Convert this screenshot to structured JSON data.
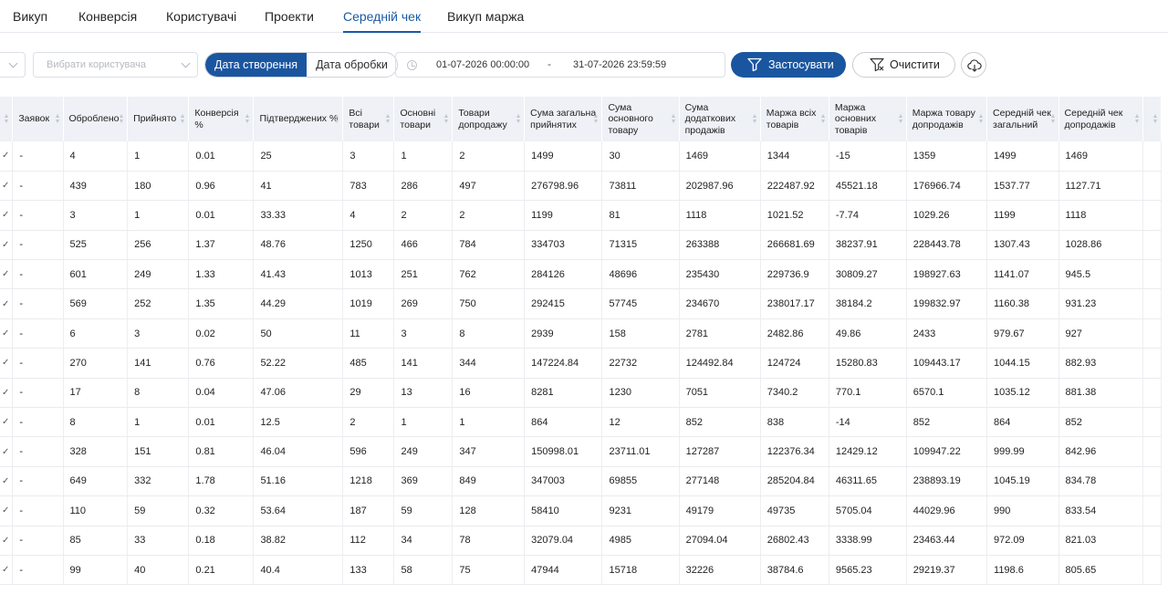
{
  "tabs": [
    "Викуп",
    "Конверсія",
    "Користувачі",
    "Проекти",
    "Середній чек",
    "Викуп маржа"
  ],
  "active_tab": "Середній чек",
  "toolbar": {
    "user_placeholder": "Вибрати користувача",
    "date_created": "Дата створення",
    "date_processed": "Дата обробки",
    "date_from": "01-07-2026 00:00:00",
    "date_sep": "-",
    "date_to": "31-07-2026 23:59:59",
    "apply_label": "Застосувати",
    "clear_label": "Очистити"
  },
  "colors": {
    "primary": "#1a56a0",
    "header_bg": "#eef1f6"
  },
  "table": {
    "headers": [
      "",
      "Заявок",
      "Оброблено",
      "Прийнято",
      "Конверсія %",
      "Підтверджених %",
      "Всі товари",
      "Основні товари",
      "Товари допродажу",
      "Сума загальна прийнятих",
      "Сума основного товару",
      "Сума додаткових продажів",
      "Маржа всіх товарів",
      "Маржа основних товарів",
      "Маржа товару допродажів",
      "Середній чек загальний",
      "Середній чек допродажів",
      ""
    ],
    "rows": [
      [
        "✓",
        "-",
        "4",
        "1",
        "0.01",
        "25",
        "3",
        "1",
        "2",
        "1499",
        "30",
        "1469",
        "1344",
        "-15",
        "1359",
        "1499",
        "1469",
        ""
      ],
      [
        "✓",
        "-",
        "439",
        "180",
        "0.96",
        "41",
        "783",
        "286",
        "497",
        "276798.96",
        "73811",
        "202987.96",
        "222487.92",
        "45521.18",
        "176966.74",
        "1537.77",
        "1127.71",
        ""
      ],
      [
        "✓",
        "-",
        "3",
        "1",
        "0.01",
        "33.33",
        "4",
        "2",
        "2",
        "1199",
        "81",
        "1118",
        "1021.52",
        "-7.74",
        "1029.26",
        "1199",
        "1118",
        ""
      ],
      [
        "✓",
        "-",
        "525",
        "256",
        "1.37",
        "48.76",
        "1250",
        "466",
        "784",
        "334703",
        "71315",
        "263388",
        "266681.69",
        "38237.91",
        "228443.78",
        "1307.43",
        "1028.86",
        ""
      ],
      [
        "✓",
        "-",
        "601",
        "249",
        "1.33",
        "41.43",
        "1013",
        "251",
        "762",
        "284126",
        "48696",
        "235430",
        "229736.9",
        "30809.27",
        "198927.63",
        "1141.07",
        "945.5",
        ""
      ],
      [
        "✓",
        "-",
        "569",
        "252",
        "1.35",
        "44.29",
        "1019",
        "269",
        "750",
        "292415",
        "57745",
        "234670",
        "238017.17",
        "38184.2",
        "199832.97",
        "1160.38",
        "931.23",
        ""
      ],
      [
        "✓",
        "-",
        "6",
        "3",
        "0.02",
        "50",
        "11",
        "3",
        "8",
        "2939",
        "158",
        "2781",
        "2482.86",
        "49.86",
        "2433",
        "979.67",
        "927",
        ""
      ],
      [
        "✓",
        "-",
        "270",
        "141",
        "0.76",
        "52.22",
        "485",
        "141",
        "344",
        "147224.84",
        "22732",
        "124492.84",
        "124724",
        "15280.83",
        "109443.17",
        "1044.15",
        "882.93",
        ""
      ],
      [
        "✓",
        "-",
        "17",
        "8",
        "0.04",
        "47.06",
        "29",
        "13",
        "16",
        "8281",
        "1230",
        "7051",
        "7340.2",
        "770.1",
        "6570.1",
        "1035.12",
        "881.38",
        ""
      ],
      [
        "✓",
        "-",
        "8",
        "1",
        "0.01",
        "12.5",
        "2",
        "1",
        "1",
        "864",
        "12",
        "852",
        "838",
        "-14",
        "852",
        "864",
        "852",
        ""
      ],
      [
        "✓",
        "-",
        "328",
        "151",
        "0.81",
        "46.04",
        "596",
        "249",
        "347",
        "150998.01",
        "23711.01",
        "127287",
        "122376.34",
        "12429.12",
        "109947.22",
        "999.99",
        "842.96",
        ""
      ],
      [
        "✓",
        "-",
        "649",
        "332",
        "1.78",
        "51.16",
        "1218",
        "369",
        "849",
        "347003",
        "69855",
        "277148",
        "285204.84",
        "46311.65",
        "238893.19",
        "1045.19",
        "834.78",
        ""
      ],
      [
        "✓",
        "-",
        "110",
        "59",
        "0.32",
        "53.64",
        "187",
        "59",
        "128",
        "58410",
        "9231",
        "49179",
        "49735",
        "5705.04",
        "44029.96",
        "990",
        "833.54",
        ""
      ],
      [
        "✓",
        "-",
        "85",
        "33",
        "0.18",
        "38.82",
        "112",
        "34",
        "78",
        "32079.04",
        "4985",
        "27094.04",
        "26802.43",
        "3338.99",
        "23463.44",
        "972.09",
        "821.03",
        ""
      ],
      [
        "✓",
        "-",
        "99",
        "40",
        "0.21",
        "40.4",
        "133",
        "58",
        "75",
        "47944",
        "15718",
        "32226",
        "38784.6",
        "9565.23",
        "29219.37",
        "1198.6",
        "805.65",
        ""
      ]
    ]
  }
}
